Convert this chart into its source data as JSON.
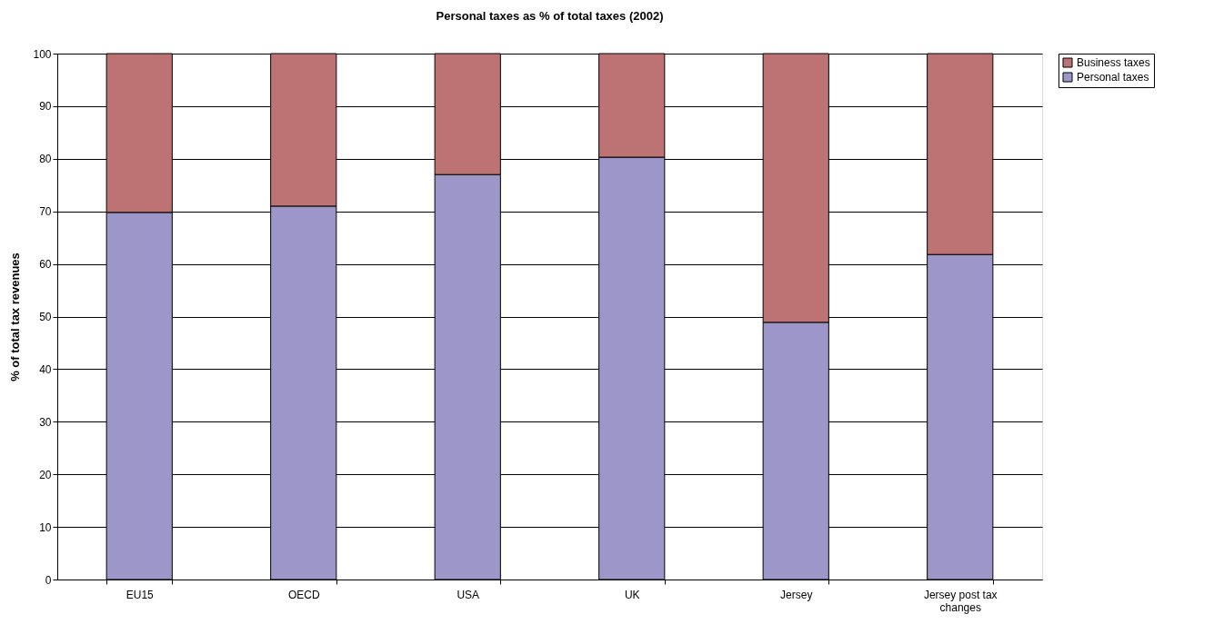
{
  "chart_data": {
    "type": "bar",
    "title": "Personal taxes as % of total taxes (2002)",
    "ylabel": "% of total tax revenues",
    "categories": [
      "EU15",
      "OECD",
      "USA",
      "UK",
      "Jersey",
      "Jersey post tax changes"
    ],
    "stacked": true,
    "series": [
      {
        "name": "Personal taxes",
        "color": "#9c96c9",
        "values": [
          69.8,
          71.0,
          77.0,
          80.3,
          48.9,
          61.8
        ]
      },
      {
        "name": "Business taxes",
        "color": "#bd7373",
        "values": [
          30.2,
          29.0,
          23.0,
          19.7,
          51.1,
          38.2
        ]
      }
    ],
    "ylim": [
      0,
      100
    ],
    "yticks": [
      0,
      10,
      20,
      30,
      40,
      50,
      60,
      70,
      80,
      90,
      100
    ],
    "grid": "y",
    "legend": "right"
  }
}
